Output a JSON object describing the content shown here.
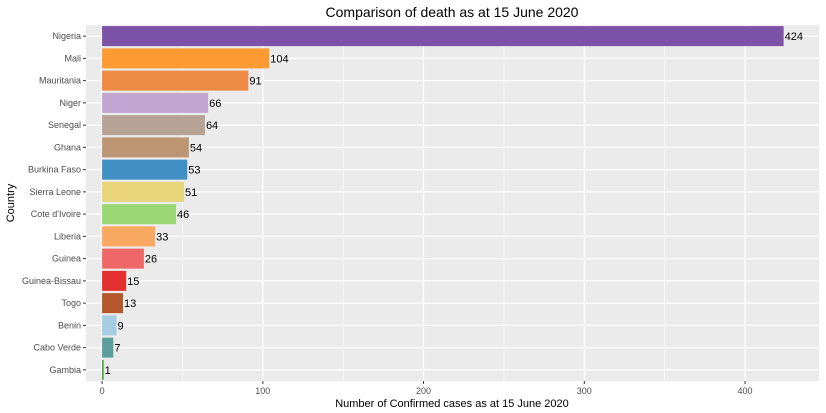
{
  "chart_data": {
    "type": "bar",
    "orientation": "horizontal",
    "title": "Comparison of death as at 15 June 2020",
    "xlabel": "Number of Confirmed cases as at 15 June 2020",
    "ylabel": "Country",
    "xlim": [
      -10,
      446
    ],
    "xticks": [
      0,
      100,
      200,
      300,
      400
    ],
    "grid": true,
    "legend": "none",
    "categories": [
      "Nigeria",
      "Mali",
      "Mauritania",
      "Niger",
      "Senegal",
      "Ghana",
      "Burkina Faso",
      "Sierra Leone",
      "Cote d'Ivoire",
      "Liberia",
      "Guinea",
      "Guinea-Bissau",
      "Togo",
      "Benin",
      "Cabo Verde",
      "Gambia"
    ],
    "values": [
      424,
      104,
      91,
      66,
      64,
      54,
      53,
      51,
      46,
      33,
      26,
      15,
      13,
      9,
      7,
      1
    ],
    "colors": [
      "#7b52a6",
      "#fd9a32",
      "#ee8b45",
      "#c2a5d0",
      "#b7a296",
      "#bc9673",
      "#4190c5",
      "#e8d47b",
      "#9ad673",
      "#f9a862",
      "#ef6767",
      "#e3302f",
      "#b2582c",
      "#a6cde2",
      "#5b9e9b",
      "#3fa537"
    ]
  }
}
